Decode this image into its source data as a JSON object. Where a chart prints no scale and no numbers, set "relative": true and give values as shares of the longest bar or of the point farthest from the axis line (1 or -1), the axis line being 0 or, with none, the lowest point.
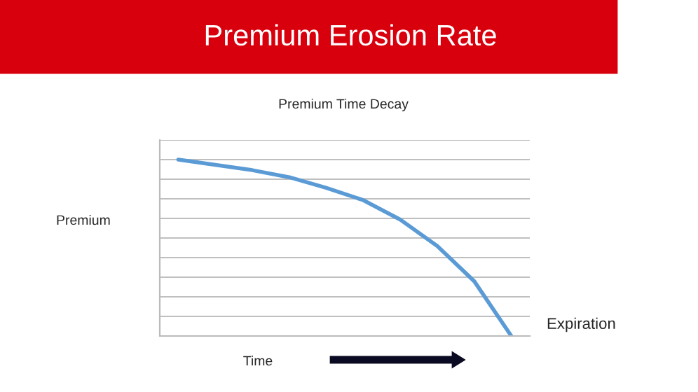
{
  "chart_data": {
    "type": "line",
    "title": "Premium Erosion Rate",
    "subtitle": "Premium Time Decay",
    "xlabel": "Time",
    "ylabel": "Premium",
    "annotations": [
      "Expiration"
    ],
    "categories": [
      null,
      null,
      null,
      null,
      null,
      null,
      null,
      null,
      null,
      null
    ],
    "relative": true,
    "series": [
      {
        "color": "#5b9bd5",
        "values": [
          1,
          0.97,
          0.94,
          0.9,
          0.84,
          0.77,
          0.66,
          0.51,
          0.31,
          0
        ]
      }
    ],
    "grid": "y",
    "legend": false,
    "marker": "none",
    "line_style": "solid"
  }
}
